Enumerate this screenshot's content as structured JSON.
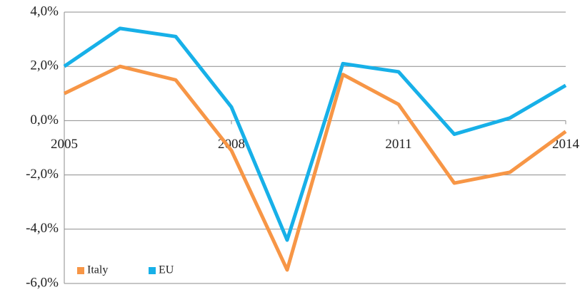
{
  "chart_data": {
    "type": "line",
    "x": [
      2005,
      2006,
      2007,
      2008,
      2009,
      2010,
      2011,
      2012,
      2013,
      2014
    ],
    "xlim": [
      2005,
      2014
    ],
    "xticks": [
      2005,
      2008,
      2011,
      2014
    ],
    "ylim": [
      -6,
      4
    ],
    "yticks": [
      {
        "value": -6,
        "label": "-6,0%"
      },
      {
        "value": -4,
        "label": "-4,0%"
      },
      {
        "value": -2,
        "label": "-2,0%"
      },
      {
        "value": 0,
        "label": "0,0%"
      },
      {
        "value": 2,
        "label": "2,0%"
      },
      {
        "value": 4,
        "label": "4,0%"
      }
    ],
    "grid": true,
    "legend": "lower left",
    "series": [
      {
        "name": "Italy",
        "color": "#f79646",
        "values": [
          1.0,
          2.0,
          1.5,
          -1.1,
          -5.5,
          1.7,
          0.6,
          -2.3,
          -1.9,
          -0.4
        ]
      },
      {
        "name": "EU",
        "color": "#17b0e8",
        "values": [
          2.0,
          3.4,
          3.1,
          0.5,
          -4.4,
          2.1,
          1.8,
          -0.5,
          0.1,
          1.3
        ]
      }
    ]
  }
}
